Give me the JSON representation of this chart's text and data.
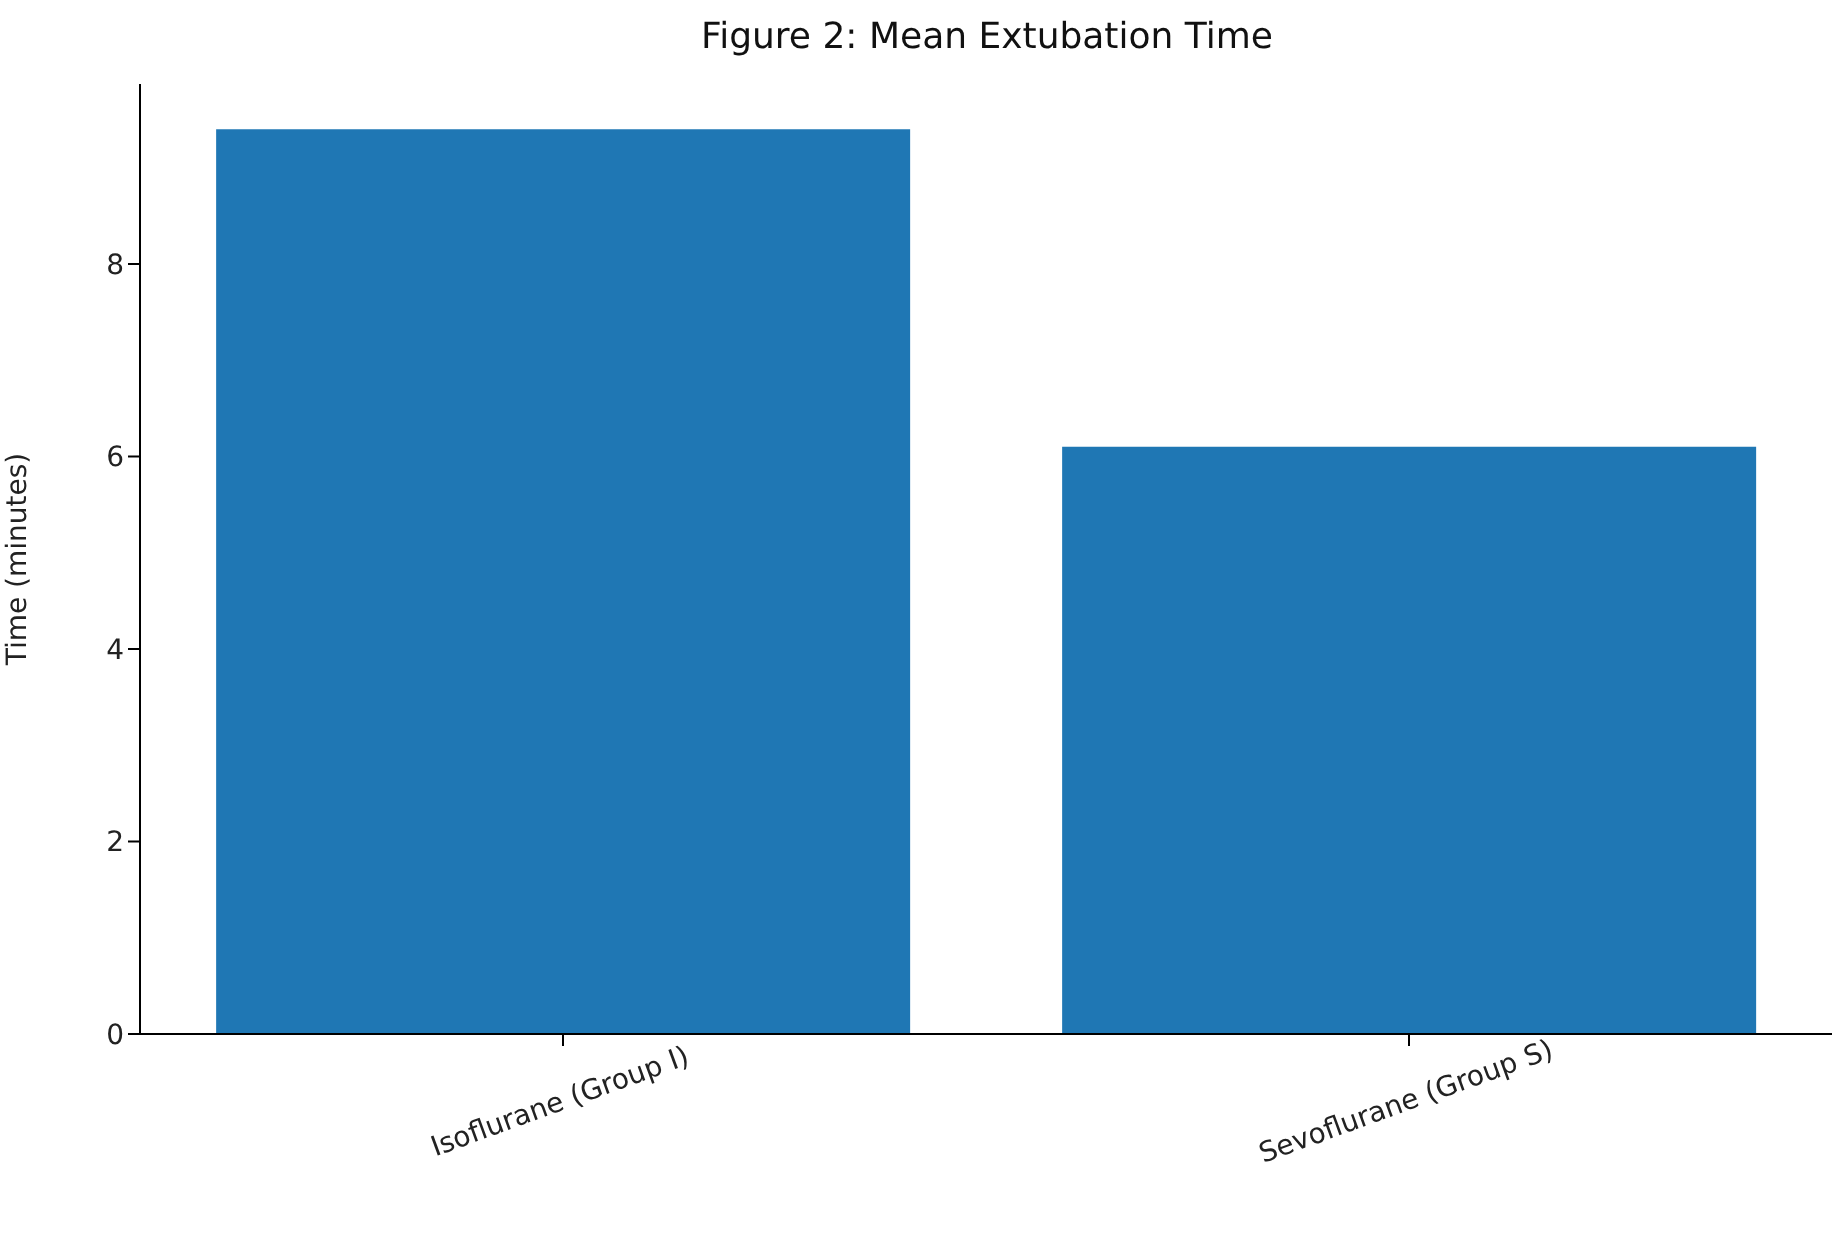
{
  "chart_data": {
    "type": "bar",
    "title": "Figure 2: Mean Extubation Time",
    "ylabel": "Time (minutes)",
    "categories": [
      "Isoflurane (Group I)",
      "Sevoflurane (Group S)"
    ],
    "values": [
      9.4,
      6.1
    ],
    "color": "#1f77b4",
    "ylim": [
      0,
      9.87
    ],
    "yticks": [
      0,
      2,
      4,
      6,
      8
    ],
    "grid": false
  }
}
